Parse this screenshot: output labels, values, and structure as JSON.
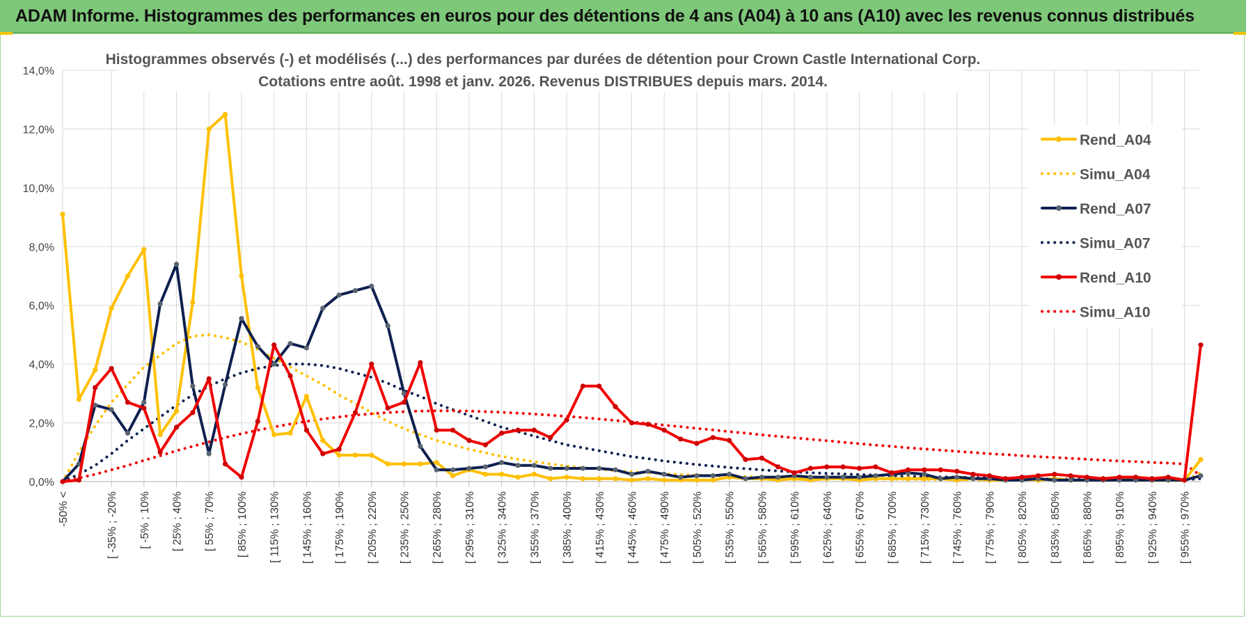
{
  "banner": {
    "title": "ADAM Informe. Histogrammes des performances en euros pour des détentions de 4 ans (A04) à 10 ans (A10) avec les revenus connus distribués"
  },
  "chart_data": {
    "type": "line",
    "title": "Histogrammes observés (-) et modélisés (...) des performances par durées de détention pour Crown Castle International Corp.",
    "subtitle": "Cotations entre août. 1998 et janv. 2026. Revenus DISTRIBUES depuis mars. 2014.",
    "xlabel": "",
    "ylabel": "",
    "ylim": [
      0,
      14
    ],
    "yticks": [
      "0,0%",
      "2,0%",
      "4,0%",
      "6,0%",
      "8,0%",
      "10,0%",
      "12,0%",
      "14,0%"
    ],
    "grid": true,
    "legend_position": "right",
    "x_tick_labels": [
      "-50% <",
      "[ -35% ; -20%",
      "[ -5% ; 10%",
      "[ 25% ; 40%",
      "[ 55% ; 70%",
      "[ 85% ; 100%",
      "[ 115% ; 130%",
      "[ 145% ; 160%",
      "[ 175% ; 190%",
      "[ 205% ; 220%",
      "[ 235% ; 250%",
      "[ 265% ; 280%",
      "[ 295% ; 310%",
      "[ 325% ; 340%",
      "[ 355% ; 370%",
      "[ 385% ; 400%",
      "[ 415% ; 430%",
      "[ 445% ; 460%",
      "[ 475% ; 490%",
      "[ 505% ; 520%",
      "[ 535% ; 550%",
      "[ 565% ; 580%",
      "[ 595% ; 610%",
      "[ 625% ; 640%",
      "[ 655% ; 670%",
      "[ 685% ; 700%",
      "[ 715% ; 730%",
      "[ 745% ; 760%",
      "[ 775% ; 790%",
      "[ 805% ; 820%",
      "[ 835% ; 850%",
      "[ 865% ; 880%",
      "[ 895% ; 910%",
      "[ 925% ; 940%",
      "[ 955% ; 970%"
    ],
    "category_count": 71,
    "series": [
      {
        "name": "Rend_A04",
        "style": "solid",
        "color": "#ffc000",
        "values": [
          9.1,
          2.8,
          3.8,
          5.9,
          7.0,
          7.9,
          1.6,
          2.4,
          6.1,
          12.0,
          12.5,
          7.0,
          3.2,
          1.6,
          1.65,
          2.9,
          1.4,
          0.9,
          0.9,
          0.9,
          0.6,
          0.6,
          0.6,
          0.65,
          0.2,
          0.4,
          0.25,
          0.25,
          0.15,
          0.25,
          0.1,
          0.15,
          0.1,
          0.1,
          0.1,
          0.05,
          0.1,
          0.05,
          0.05,
          0.05,
          0.05,
          0.15,
          0.1,
          0.1,
          0.05,
          0.1,
          0.05,
          0.1,
          0.1,
          0.05,
          0.1,
          0.1,
          0.1,
          0.1,
          0.1,
          0.05,
          0.1,
          0.05,
          0.05,
          0.1,
          0.05,
          0.1,
          0.05,
          0.05,
          0.1,
          0.05,
          0.1,
          0.05,
          0.05,
          0.05,
          0.75
        ]
      },
      {
        "name": "Simu_A04",
        "style": "dotted",
        "color": "#ffc000",
        "values": [
          0.0,
          1.0,
          1.9,
          2.7,
          3.3,
          3.9,
          4.3,
          4.7,
          4.95,
          5.0,
          4.9,
          4.75,
          4.5,
          4.2,
          3.9,
          3.6,
          3.3,
          2.95,
          2.65,
          2.35,
          2.05,
          1.8,
          1.6,
          1.4,
          1.25,
          1.1,
          0.98,
          0.86,
          0.76,
          0.68,
          0.6,
          0.53,
          0.47,
          0.42,
          0.37,
          0.33,
          0.3,
          0.27,
          0.24,
          0.22,
          0.2,
          0.18,
          0.17,
          0.15,
          0.14,
          0.13,
          0.12,
          0.11,
          0.1,
          0.09,
          0.09,
          0.08,
          0.08,
          0.07,
          0.07,
          0.06,
          0.06,
          0.06,
          0.05,
          0.05,
          0.05,
          0.05,
          0.04,
          0.04,
          0.04,
          0.04,
          0.04,
          0.03,
          0.03,
          0.03,
          0.3
        ]
      },
      {
        "name": "Rend_A07",
        "style": "solid",
        "color": "#0e2050",
        "values": [
          0.0,
          0.6,
          2.6,
          2.45,
          1.65,
          2.7,
          6.05,
          7.4,
          3.25,
          0.95,
          3.3,
          5.55,
          4.6,
          4.0,
          4.7,
          4.55,
          5.9,
          6.35,
          6.5,
          6.65,
          5.3,
          3.0,
          1.2,
          0.4,
          0.4,
          0.45,
          0.5,
          0.65,
          0.55,
          0.55,
          0.45,
          0.45,
          0.45,
          0.45,
          0.4,
          0.25,
          0.35,
          0.25,
          0.15,
          0.2,
          0.2,
          0.25,
          0.1,
          0.15,
          0.15,
          0.2,
          0.15,
          0.15,
          0.15,
          0.15,
          0.2,
          0.25,
          0.3,
          0.25,
          0.1,
          0.15,
          0.1,
          0.1,
          0.05,
          0.05,
          0.1,
          0.05,
          0.05,
          0.05,
          0.05,
          0.05,
          0.05,
          0.05,
          0.05,
          0.05,
          0.2
        ]
      },
      {
        "name": "Simu_A07",
        "style": "dotted",
        "color": "#0e2050",
        "values": [
          0.0,
          0.25,
          0.55,
          0.95,
          1.4,
          1.8,
          2.2,
          2.6,
          2.95,
          3.25,
          3.5,
          3.7,
          3.85,
          3.95,
          4.0,
          4.0,
          3.95,
          3.85,
          3.7,
          3.55,
          3.35,
          3.1,
          2.9,
          2.65,
          2.45,
          2.25,
          2.05,
          1.85,
          1.7,
          1.55,
          1.4,
          1.25,
          1.15,
          1.05,
          0.95,
          0.85,
          0.78,
          0.7,
          0.64,
          0.58,
          0.53,
          0.48,
          0.44,
          0.4,
          0.36,
          0.33,
          0.3,
          0.28,
          0.26,
          0.24,
          0.22,
          0.2,
          0.18,
          0.17,
          0.16,
          0.15,
          0.14,
          0.13,
          0.12,
          0.11,
          0.1,
          0.09,
          0.09,
          0.08,
          0.08,
          0.07,
          0.07,
          0.06,
          0.06,
          0.06,
          0.1
        ]
      },
      {
        "name": "Rend_A10",
        "style": "solid",
        "color": "#f00000",
        "values": [
          0.0,
          0.05,
          3.2,
          3.85,
          2.7,
          2.5,
          1.0,
          1.85,
          2.35,
          3.5,
          0.6,
          0.15,
          2.05,
          4.65,
          3.6,
          1.75,
          0.95,
          1.1,
          2.35,
          4.0,
          2.5,
          2.7,
          4.05,
          1.75,
          1.75,
          1.4,
          1.25,
          1.65,
          1.75,
          1.75,
          1.5,
          2.1,
          3.25,
          3.25,
          2.55,
          2.0,
          1.95,
          1.75,
          1.45,
          1.3,
          1.5,
          1.4,
          0.75,
          0.8,
          0.5,
          0.3,
          0.45,
          0.5,
          0.5,
          0.45,
          0.5,
          0.3,
          0.4,
          0.4,
          0.4,
          0.35,
          0.25,
          0.2,
          0.1,
          0.15,
          0.2,
          0.25,
          0.2,
          0.15,
          0.1,
          0.15,
          0.15,
          0.1,
          0.15,
          0.05,
          4.65
        ]
      },
      {
        "name": "Simu_A10",
        "style": "dotted",
        "color": "#f00000",
        "values": [
          0.0,
          0.12,
          0.25,
          0.4,
          0.55,
          0.72,
          0.88,
          1.05,
          1.2,
          1.35,
          1.5,
          1.63,
          1.75,
          1.86,
          1.96,
          2.05,
          2.13,
          2.2,
          2.26,
          2.31,
          2.35,
          2.38,
          2.4,
          2.41,
          2.41,
          2.4,
          2.38,
          2.36,
          2.33,
          2.3,
          2.26,
          2.22,
          2.18,
          2.13,
          2.08,
          2.03,
          1.98,
          1.92,
          1.87,
          1.81,
          1.76,
          1.7,
          1.65,
          1.59,
          1.54,
          1.49,
          1.44,
          1.39,
          1.34,
          1.29,
          1.24,
          1.2,
          1.15,
          1.11,
          1.07,
          1.03,
          0.99,
          0.95,
          0.92,
          0.88,
          0.85,
          0.82,
          0.79,
          0.76,
          0.73,
          0.7,
          0.68,
          0.65,
          0.63,
          0.6,
          0.2
        ]
      }
    ]
  }
}
